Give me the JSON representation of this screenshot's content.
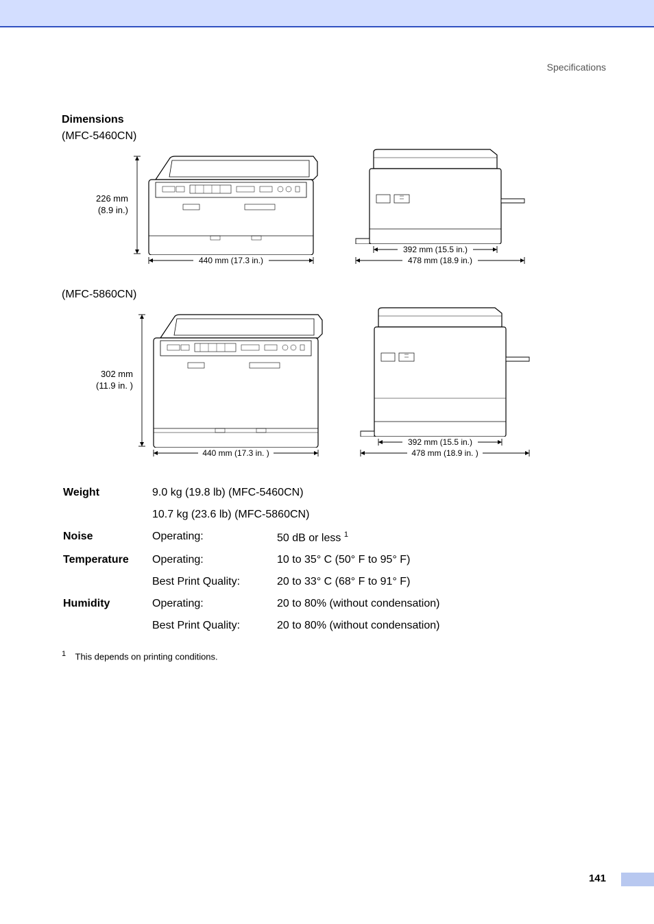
{
  "header": {
    "section": "Specifications"
  },
  "dimensions": {
    "title": "Dimensions",
    "models": [
      {
        "name": "(MFC-5460CN)",
        "height_mm": "226 mm",
        "height_in": "(8.9 in.)",
        "front_width": "440 mm (17.3 in.)",
        "side_inner": "392 mm (15.5 in.)",
        "side_outer": "478 mm (18.9 in.)",
        "front_svg_h": 170,
        "side_svg_h": 170,
        "printer_body_h": 110,
        "tray2": false
      },
      {
        "name": "(MFC-5860CN)",
        "height_mm": "302 mm",
        "height_in": "(11.9 in. )",
        "front_width": "440 mm (17.3 in. )",
        "side_inner": "392 mm (15.5 in.)",
        "side_outer": "478 mm (18.9 in. )",
        "front_svg_h": 220,
        "side_svg_h": 220,
        "printer_body_h": 160,
        "tray2": true
      }
    ]
  },
  "specs": {
    "weight": {
      "label": "Weight",
      "rows": [
        {
          "sub": "",
          "val": "9.0 kg (19.8 lb) (MFC-5460CN)"
        },
        {
          "sub": "",
          "val": "10.7 kg (23.6 lb) (MFC-5860CN)"
        }
      ]
    },
    "noise": {
      "label": "Noise",
      "rows": [
        {
          "sub": "Operating:",
          "val": "50 dB or less ",
          "sup": "1"
        }
      ]
    },
    "temperature": {
      "label": "Temperature",
      "rows": [
        {
          "sub": "Operating:",
          "val": "10 to 35° C (50° F to 95° F)"
        },
        {
          "sub": "Best Print Quality:",
          "val": "20 to 33° C (68° F to 91° F)"
        }
      ]
    },
    "humidity": {
      "label": "Humidity",
      "rows": [
        {
          "sub": "Operating:",
          "val": "20 to 80% (without condensation)"
        },
        {
          "sub": "Best Print Quality:",
          "val": "20 to 80% (without condensation)"
        }
      ]
    }
  },
  "footnote": {
    "num": "1",
    "text": "This depends on printing conditions."
  },
  "page_number": "141",
  "colors": {
    "topbar": "#d3deff",
    "topbar_border": "#3050c0",
    "tab": "#b8c8f0",
    "line": "#000000"
  }
}
